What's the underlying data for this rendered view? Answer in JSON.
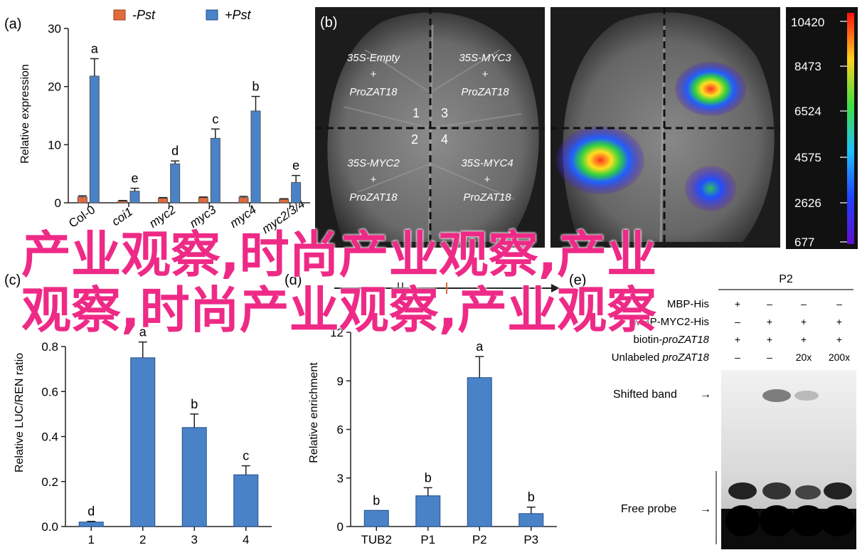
{
  "panels": {
    "a": {
      "letter": "(a)",
      "legend": [
        "-Pst",
        "+Pst"
      ],
      "ylabel": "Relative expression"
    },
    "b": {
      "letter": "(b)",
      "quadrants": [
        {
          "l1": "35S-Empty",
          "l2": "+",
          "l3": "ProZAT18"
        },
        {
          "l1": "35S-MYC3",
          "l2": "+",
          "l3": "ProZAT18"
        },
        {
          "l1": "35S-MYC2",
          "l2": "+",
          "l3": "ProZAT18"
        },
        {
          "l1": "35S-MYC4",
          "l2": "+",
          "l3": "ProZAT18"
        }
      ],
      "numbers": [
        "1",
        "3",
        "2",
        "4"
      ],
      "scale": [
        "10420",
        "8473",
        "6524",
        "4575",
        "2626",
        "677"
      ]
    },
    "c": {
      "letter": "(c)",
      "ylabel": "Relative LUC/REN ratio"
    },
    "d": {
      "letter": "(d)",
      "ylabel": "Relative enrichment"
    },
    "e": {
      "letter": "(e)",
      "probe_header": "P2",
      "rows": [
        {
          "label": "MBP-His",
          "cells": [
            "+",
            "–",
            "–",
            "–"
          ]
        },
        {
          "label": "MBP-MYC2-His",
          "cells": [
            "–",
            "+",
            "+",
            "+"
          ]
        },
        {
          "label": "biotin-proZAT18",
          "cells": [
            "+",
            "+",
            "+",
            "+"
          ]
        },
        {
          "label": "Unlabeled proZAT18",
          "cells": [
            "–",
            "–",
            "20x",
            "200x"
          ]
        }
      ],
      "shifted": "Shifted band",
      "free": "Free probe"
    }
  },
  "overlay": {
    "line1": "产业观察,时尚产业观察,产业",
    "line2": "观察,时尚产业观察,产业观察"
  },
  "chart_data": [
    {
      "type": "bar",
      "categories": [
        "Col-0",
        "coi1",
        "myc2",
        "myc3",
        "myc4",
        "myc2/3/4"
      ],
      "series": [
        {
          "name": "-Pst",
          "color": "#e06b3c",
          "values": [
            1.0,
            0.3,
            0.8,
            0.9,
            0.9,
            0.6
          ],
          "errors": [
            0.2,
            0.1,
            0.1,
            0.1,
            0.2,
            0.1
          ]
        },
        {
          "name": "+Pst",
          "color": "#4a82c8",
          "values": [
            21.8,
            2.0,
            6.7,
            11.1,
            15.8,
            3.5
          ],
          "errors": [
            3.0,
            0.5,
            0.5,
            1.6,
            2.5,
            1.2
          ]
        }
      ],
      "letters": [
        "a",
        "e",
        "d",
        "c",
        "b",
        "e"
      ],
      "ylim": [
        0,
        30
      ],
      "yticks": [
        0,
        10,
        20,
        30
      ],
      "ylabel": "Relative expression"
    },
    {
      "type": "bar",
      "categories": [
        "1",
        "2",
        "3",
        "4"
      ],
      "values": [
        0.02,
        0.75,
        0.44,
        0.23
      ],
      "errors": [
        0.003,
        0.07,
        0.06,
        0.04
      ],
      "letters": [
        "d",
        "a",
        "b",
        "c"
      ],
      "ylim": [
        0,
        0.8
      ],
      "yticks": [
        0.0,
        0.2,
        0.4,
        0.6,
        0.8
      ],
      "ylabel": "Relative LUC/REN ratio"
    },
    {
      "type": "bar",
      "categories": [
        "TUB2",
        "P1",
        "P2",
        "P3"
      ],
      "values": [
        1.0,
        1.9,
        9.2,
        0.8
      ],
      "errors": [
        0.0,
        0.5,
        1.3,
        0.4
      ],
      "letters": [
        "b",
        "b",
        "a",
        "b"
      ],
      "ylim": [
        0,
        12
      ],
      "yticks": [
        0,
        3,
        6,
        9,
        12
      ],
      "ylabel": "Relative enrichment"
    }
  ]
}
